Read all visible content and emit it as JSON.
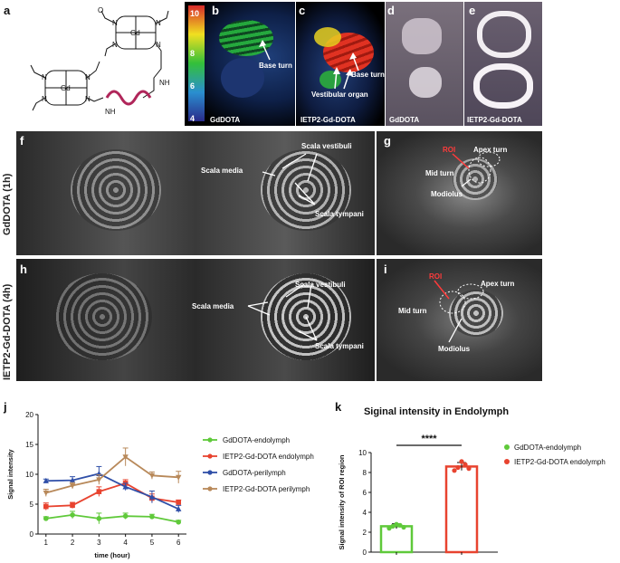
{
  "panels": {
    "a": "a",
    "b": "b",
    "c": "c",
    "d": "d",
    "e": "e",
    "f": "f",
    "g": "g",
    "h": "h",
    "i": "i",
    "j": "j",
    "k": "k"
  },
  "colorbar": {
    "ticks": [
      "10",
      "8",
      "6",
      "4"
    ]
  },
  "panel_b": {
    "base_turn": "Base turn",
    "caption": "GdDOTA"
  },
  "panel_c": {
    "base_turn": "Base turn",
    "vestibular": "Vestibular organ",
    "caption": "IETP2-Gd-DOTA"
  },
  "panel_d": {
    "caption": "GdDOTA"
  },
  "panel_e": {
    "caption": "IETP2-Gd-DOTA"
  },
  "panel_f": {
    "scala_media": "Scala media",
    "scala_vestibuli": "Scala vestibuli",
    "scala_tympani": "Scala tympani"
  },
  "panel_g": {
    "roi": "ROI",
    "apex": "Apex turn",
    "mid": "Mid turn",
    "modiolus": "Modiolus"
  },
  "panel_h": {
    "scala_media": "Scala media",
    "scala_vestibuli": "Scala vestibuli",
    "scala_tympani": "Scala tympani"
  },
  "panel_i": {
    "roi": "ROI",
    "apex": "Apex turn",
    "mid": "Mid turn",
    "modiolus": "Modiolus"
  },
  "row_labels": {
    "top": "GdDOTA (1h)",
    "bottom": "IETP2-Gd-DOTA (4h)"
  },
  "chemistry": {
    "atoms": [
      "Gd",
      "Gd",
      "N",
      "N",
      "N",
      "N",
      "N",
      "N",
      "N",
      "N",
      "O",
      "NH",
      "NH"
    ]
  },
  "colors": {
    "green": "#5fc93a",
    "red": "#e8432f",
    "blue": "#2f4fa8",
    "brown": "#b8895a"
  },
  "chart_data": [
    {
      "type": "line",
      "title": "",
      "xlabel": "time (hour)",
      "ylabel": "Signal intensity",
      "xlim": [
        0.7,
        6.3
      ],
      "ylim": [
        0,
        20
      ],
      "xticks": [
        "1",
        "2",
        "3",
        "4",
        "5",
        "6"
      ],
      "yticks": [
        "0",
        "5",
        "10",
        "15",
        "20"
      ],
      "legend_position": "right",
      "x": [
        1,
        2,
        3,
        4,
        5,
        6
      ],
      "series": [
        {
          "name": "GdDOTA-endolymph",
          "color": "#5fc93a",
          "marker": "circle",
          "values": [
            2.6,
            3.2,
            2.6,
            3.0,
            2.9,
            2.0
          ],
          "err": [
            0.3,
            0.6,
            0.9,
            0.5,
            0.4,
            0.3
          ]
        },
        {
          "name": "IETP2-Gd-DOTA endolymph",
          "color": "#e8432f",
          "marker": "square",
          "values": [
            4.6,
            4.8,
            7.1,
            8.5,
            6.0,
            5.3
          ],
          "err": [
            0.6,
            0.5,
            0.8,
            0.6,
            0.7,
            0.4
          ]
        },
        {
          "name": "GdDOTA-perilymph",
          "color": "#2f4fa8",
          "marker": "triangle",
          "values": [
            8.9,
            9.0,
            10.1,
            7.9,
            6.2,
            4.2
          ],
          "err": [
            0.3,
            0.6,
            1.2,
            0.6,
            1.0,
            0.6
          ]
        },
        {
          "name": "IETP2-Gd-DOTA perilymph",
          "color": "#b8895a",
          "marker": "triangle-down",
          "values": [
            6.9,
            8.1,
            9.1,
            12.9,
            9.8,
            9.5
          ],
          "err": [
            0.6,
            0.5,
            0.8,
            1.5,
            0.6,
            1.0
          ]
        }
      ]
    },
    {
      "type": "bar",
      "title": "Siginal intensity in Endolymph",
      "xlabel": "",
      "ylabel": "Signal intensity of ROI region",
      "ylim": [
        0,
        10
      ],
      "yticks": [
        "0",
        "2",
        "4",
        "6",
        "8",
        "10"
      ],
      "legend_position": "right",
      "significance": "****",
      "categories": [
        "GdDOTA-endolymph",
        "IETP2-Gd-DOTA endolymph"
      ],
      "series": [
        {
          "name": "GdDOTA-endolymph",
          "color": "#5fc93a",
          "value": 2.6,
          "err": 0.25,
          "points": [
            2.4,
            2.6,
            2.8,
            2.7,
            2.5
          ]
        },
        {
          "name": "IETP2-Gd-DOTA endolymph",
          "color": "#e8432f",
          "value": 8.6,
          "err": 0.4,
          "points": [
            8.2,
            8.5,
            9.1,
            8.8,
            8.4
          ]
        }
      ]
    }
  ]
}
